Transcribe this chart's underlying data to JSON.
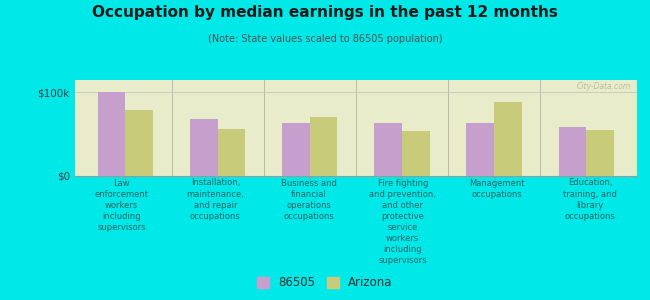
{
  "title": "Occupation by median earnings in the past 12 months",
  "subtitle": "(Note: State values scaled to 86505 population)",
  "background_color": "#00e8e8",
  "plot_bg_color": "#e8ecca",
  "categories": [
    "Law\nenforcement\nworkers\nincluding\nsupervisors",
    "Installation,\nmaintenance,\nand repair\noccupations",
    "Business and\nfinancial\noperations\noccupations",
    "Fire fighting\nand prevention,\nand other\nprotective\nservice\nworkers\nincluding\nsupervisors",
    "Management\noccupations",
    "Education,\ntraining, and\nlibrary\noccupations"
  ],
  "values_86505": [
    100000,
    68000,
    63000,
    63000,
    63000,
    58000
  ],
  "values_arizona": [
    78000,
    56000,
    70000,
    53000,
    88000,
    55000
  ],
  "color_86505": "#c79fcc",
  "color_arizona": "#c8cc7a",
  "ylim": [
    0,
    115000
  ],
  "ytick_labels": [
    "$0",
    "$100k"
  ],
  "ytick_vals": [
    0,
    100000
  ],
  "legend_label_86505": "86505",
  "legend_label_arizona": "Arizona",
  "watermark": "City-Data.com",
  "title_color": "#1a1a1a",
  "subtitle_color": "#555555",
  "label_color": "#2a6666"
}
